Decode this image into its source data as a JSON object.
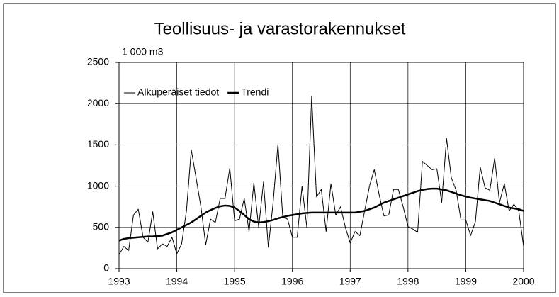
{
  "chart_data": {
    "type": "line",
    "title": "Teollisuus- ja varastorakennukset",
    "y_label": "1 000 m3",
    "categories": [
      "1993",
      null,
      null,
      null,
      null,
      null,
      null,
      null,
      null,
      null,
      null,
      null,
      "1994",
      null,
      null,
      null,
      null,
      null,
      null,
      null,
      null,
      null,
      null,
      null,
      "1995",
      null,
      null,
      null,
      null,
      null,
      null,
      null,
      null,
      null,
      null,
      null,
      "1996",
      null,
      null,
      null,
      null,
      null,
      null,
      null,
      null,
      null,
      null,
      null,
      "1997",
      null,
      null,
      null,
      null,
      null,
      null,
      null,
      null,
      null,
      null,
      null,
      "1998",
      null,
      null,
      null,
      null,
      null,
      null,
      null,
      null,
      null,
      null,
      null,
      "1999",
      null,
      null,
      null,
      null,
      null,
      null,
      null,
      null,
      null,
      null,
      null,
      "2000"
    ],
    "series": [
      {
        "name": "Alkuperäiset tiedot",
        "color": "#000000",
        "width": 1,
        "values": [
          170,
          270,
          220,
          650,
          720,
          380,
          320,
          690,
          240,
          300,
          270,
          380,
          180,
          300,
          700,
          1440,
          1100,
          750,
          290,
          600,
          560,
          850,
          850,
          1220,
          580,
          600,
          850,
          450,
          1040,
          500,
          1050,
          260,
          800,
          1510,
          620,
          600,
          380,
          380,
          1000,
          500,
          2090,
          870,
          960,
          450,
          1030,
          650,
          750,
          500,
          310,
          450,
          400,
          700,
          1000,
          1200,
          900,
          640,
          650,
          960,
          960,
          750,
          510,
          480,
          440,
          1300,
          1250,
          1200,
          1210,
          800,
          1580,
          1100,
          950,
          590,
          590,
          400,
          570,
          1230,
          980,
          950,
          1340,
          800,
          1030,
          700,
          780,
          700,
          270
        ]
      },
      {
        "name": "Trendi",
        "color": "#000000",
        "width": 2.5,
        "values": [
          340,
          360,
          370,
          375,
          380,
          385,
          390,
          390,
          395,
          400,
          420,
          440,
          470,
          500,
          530,
          560,
          600,
          640,
          680,
          710,
          735,
          755,
          765,
          760,
          740,
          700,
          650,
          600,
          570,
          560,
          565,
          575,
          590,
          610,
          625,
          640,
          650,
          660,
          670,
          675,
          680,
          680,
          680,
          680,
          680,
          680,
          680,
          680,
          680,
          680,
          690,
          700,
          720,
          740,
          770,
          800,
          820,
          840,
          860,
          880,
          900,
          920,
          940,
          955,
          965,
          970,
          970,
          960,
          950,
          930,
          910,
          890,
          875,
          860,
          850,
          840,
          830,
          820,
          800,
          780,
          760,
          740,
          730,
          720,
          700
        ]
      }
    ],
    "ylim": [
      0,
      2500
    ],
    "yticks": [
      0,
      500,
      1000,
      1500,
      2000,
      2500
    ],
    "grid": true,
    "legend": "top-left"
  }
}
